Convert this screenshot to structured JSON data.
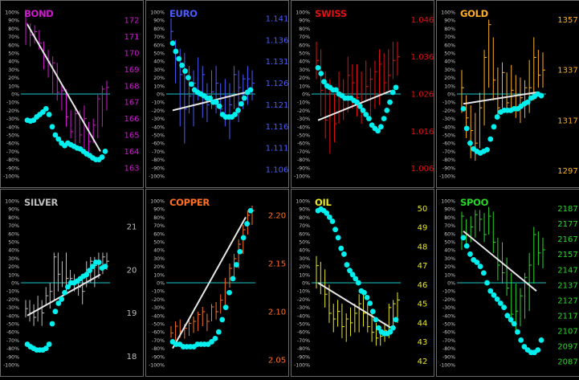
{
  "colors": {
    "background": "#000000",
    "panel_border": "#6a6a6a",
    "zero_line": "#19c9c9",
    "dots": "#00f0f0",
    "trend_line": "#e6e6e6",
    "pct_labels": "#c8c8c8"
  },
  "pct_axis_labels": [
    "100%",
    "90%",
    "80%",
    "70%",
    "60%",
    "50%",
    "40%",
    "30%",
    "20%",
    "10%",
    "0%",
    "-10%",
    "-20%",
    "-30%",
    "-40%",
    "-50%",
    "-60%",
    "-70%",
    "-80%",
    "-90%",
    "-100%"
  ],
  "chart_data": [
    {
      "type": "line",
      "title": "BOND",
      "color": "#d018d0",
      "price_ticks": [
        "172",
        "171",
        "170",
        "169",
        "168",
        "167",
        "166",
        "165",
        "164",
        "163"
      ],
      "ylim": [
        162.5,
        172.5
      ],
      "bars": [
        [
          170.5,
          172.2,
          171.8
        ],
        [
          170.4,
          171.8,
          171.1
        ],
        [
          170.6,
          171.7,
          171.3
        ],
        [
          170.2,
          171.4,
          170.6
        ],
        [
          169.0,
          170.7,
          169.9
        ],
        [
          168.5,
          170.2,
          169.5
        ],
        [
          167.5,
          169.8,
          169.4
        ],
        [
          167.1,
          169.4,
          167.6
        ],
        [
          166.5,
          168.0,
          167.7
        ],
        [
          165.5,
          167.8,
          166.1
        ],
        [
          164.8,
          166.5,
          165.2
        ],
        [
          164.2,
          166.8,
          166.3
        ],
        [
          164.5,
          166.5,
          165.0
        ],
        [
          164.2,
          166.8,
          166.0
        ],
        [
          163.8,
          165.8,
          164.6
        ],
        [
          164.5,
          166.0,
          165.6
        ],
        [
          164.8,
          167.5,
          167.2
        ],
        [
          165.5,
          168.0,
          167.8
        ],
        [
          166.5,
          168.3,
          167.9
        ]
      ],
      "oscillator": [
        -32,
        -33,
        -32,
        -28,
        -25,
        -22,
        -18,
        -25,
        -40,
        -50,
        -55,
        -60,
        -63,
        -60,
        -62,
        -64,
        -66,
        -67,
        -70,
        -73,
        -75,
        -78,
        -80,
        -80,
        -77,
        -70
      ],
      "trend": [
        85,
        -70
      ]
    },
    {
      "type": "line",
      "title": "EURO",
      "color": "#4a5cff",
      "price_ticks": [
        "1.141",
        "1.136",
        "1.131",
        "1.126",
        "1.121",
        "1.116",
        "1.111",
        "1.106"
      ],
      "ylim": [
        1.1045,
        1.1425
      ],
      "bars": [
        [
          1.136,
          1.141,
          1.138
        ],
        [
          1.126,
          1.136,
          1.133
        ],
        [
          1.116,
          1.134,
          1.128
        ],
        [
          1.112,
          1.133,
          1.12
        ],
        [
          1.119,
          1.13,
          1.123
        ],
        [
          1.116,
          1.129,
          1.126
        ],
        [
          1.122,
          1.132,
          1.124
        ],
        [
          1.118,
          1.13,
          1.128
        ],
        [
          1.117,
          1.126,
          1.121
        ],
        [
          1.12,
          1.129,
          1.124
        ],
        [
          1.119,
          1.13,
          1.126
        ],
        [
          1.119,
          1.126,
          1.12
        ],
        [
          1.116,
          1.127,
          1.123
        ],
        [
          1.113,
          1.126,
          1.121
        ],
        [
          1.12,
          1.13,
          1.128
        ],
        [
          1.117,
          1.129,
          1.125
        ],
        [
          1.12,
          1.128,
          1.127
        ],
        [
          1.121,
          1.13,
          1.127
        ],
        [
          1.122,
          1.129,
          1.126
        ]
      ],
      "oscillator": [
        62,
        52,
        43,
        35,
        28,
        20,
        12,
        5,
        2,
        0,
        -2,
        -5,
        -5,
        -10,
        -10,
        -15,
        -25,
        -28,
        -28,
        -28,
        -25,
        -20,
        -12,
        -5,
        2,
        5
      ],
      "trend": [
        -20,
        2
      ]
    },
    {
      "type": "line",
      "title": "SWISS",
      "color": "#e41010",
      "price_ticks": [
        "1.046",
        "1.036",
        "1.026",
        "1.016",
        "1.006"
      ],
      "ylim": [
        1.004,
        1.048
      ],
      "bars": [
        [
          1.03,
          1.04,
          1.035
        ],
        [
          1.02,
          1.038,
          1.027
        ],
        [
          1.014,
          1.032,
          1.019
        ],
        [
          1.01,
          1.03,
          1.027
        ],
        [
          1.013,
          1.026,
          1.018
        ],
        [
          1.018,
          1.032,
          1.026
        ],
        [
          1.019,
          1.03,
          1.022
        ],
        [
          1.021,
          1.036,
          1.031
        ],
        [
          1.022,
          1.034,
          1.029
        ],
        [
          1.02,
          1.034,
          1.025
        ],
        [
          1.018,
          1.032,
          1.021
        ],
        [
          1.024,
          1.035,
          1.028
        ],
        [
          1.02,
          1.033,
          1.03
        ],
        [
          1.022,
          1.035,
          1.032
        ],
        [
          1.023,
          1.038,
          1.034
        ],
        [
          1.026,
          1.037,
          1.029
        ],
        [
          1.027,
          1.038,
          1.031
        ],
        [
          1.03,
          1.04,
          1.035
        ],
        [
          1.031,
          1.04,
          1.036
        ]
      ],
      "oscillator": [
        32,
        25,
        15,
        10,
        8,
        5,
        5,
        0,
        -2,
        -5,
        -5,
        -5,
        -8,
        -10,
        -15,
        -20,
        -25,
        -30,
        -38,
        -42,
        -45,
        -40,
        -30,
        -20,
        -10,
        2,
        8
      ],
      "trend": [
        -32,
        4
      ]
    },
    {
      "type": "line",
      "title": "GOLD",
      "color": "#ffb020",
      "price_ticks": [
        "1357",
        "1337",
        "1317",
        "1297"
      ],
      "ylim": [
        1295,
        1360
      ],
      "bars": [
        [
          1320,
          1337,
          1330
        ],
        [
          1310,
          1327,
          1318
        ],
        [
          1302,
          1323,
          1313
        ],
        [
          1301,
          1320,
          1308
        ],
        [
          1306,
          1328,
          1322
        ],
        [
          1315,
          1345,
          1342
        ],
        [
          1330,
          1357,
          1355
        ],
        [
          1325,
          1350,
          1333
        ],
        [
          1318,
          1338,
          1322
        ],
        [
          1322,
          1340,
          1336
        ],
        [
          1321,
          1336,
          1324
        ],
        [
          1320,
          1339,
          1329
        ],
        [
          1318,
          1335,
          1322
        ],
        [
          1316,
          1334,
          1326
        ],
        [
          1318,
          1333,
          1330
        ],
        [
          1320,
          1341,
          1330
        ],
        [
          1325,
          1350,
          1342
        ],
        [
          1330,
          1345,
          1335
        ],
        [
          1330,
          1344,
          1337
        ]
      ],
      "oscillator": [
        -18,
        -42,
        -60,
        -67,
        -70,
        -72,
        -70,
        -68,
        -55,
        -40,
        -28,
        -22,
        -20,
        -20,
        -20,
        -18,
        -18,
        -15,
        -12,
        -10,
        -5,
        -3,
        0,
        -2
      ],
      "trend": [
        -12,
        2
      ]
    },
    {
      "type": "line",
      "title": "SILVER",
      "color": "#bebebe",
      "price_ticks": [
        "21",
        "20",
        "19",
        "18"
      ],
      "ylim": [
        17.8,
        21.6
      ],
      "bars": [
        [
          18.9,
          19.3,
          19.1
        ],
        [
          18.8,
          19.3,
          19.0
        ],
        [
          18.7,
          19.2,
          18.9
        ],
        [
          18.8,
          19.4,
          19.1
        ],
        [
          18.7,
          19.3,
          19.0
        ],
        [
          19.2,
          19.6,
          19.4
        ],
        [
          19.1,
          19.7,
          19.5
        ],
        [
          19.3,
          20.4,
          20.3
        ],
        [
          19.5,
          20.4,
          19.9
        ],
        [
          19.6,
          20.2,
          19.7
        ],
        [
          19.5,
          20.4,
          19.8
        ],
        [
          19.6,
          20.0,
          19.8
        ],
        [
          19.5,
          19.9,
          19.7
        ],
        [
          19.4,
          19.8,
          19.6
        ],
        [
          19.2,
          19.8,
          19.5
        ],
        [
          19.6,
          20.2,
          20.0
        ],
        [
          19.7,
          20.3,
          20.2
        ],
        [
          19.6,
          20.3,
          20.1
        ],
        [
          19.8,
          20.4,
          20.2
        ],
        [
          19.9,
          20.4,
          20.3
        ],
        [
          20.0,
          20.4,
          20.2
        ]
      ],
      "oscillator": [
        -75,
        -78,
        -80,
        -82,
        -82,
        -82,
        -80,
        -75,
        -50,
        -35,
        -25,
        -20,
        -12,
        -5,
        0,
        0,
        2,
        5,
        8,
        10,
        15,
        20,
        25,
        25,
        18,
        20
      ],
      "trend": [
        -40,
        10
      ]
    },
    {
      "type": "line",
      "title": "COPPER",
      "color": "#ff7020",
      "price_ticks": [
        "2.20",
        "2.15",
        "2.10",
        "2.05"
      ],
      "ylim": [
        2.045,
        2.215
      ],
      "bars": [
        [
          2.073,
          2.085,
          2.078
        ],
        [
          2.07,
          2.09,
          2.085
        ],
        [
          2.073,
          2.092,
          2.08
        ],
        [
          2.072,
          2.087,
          2.083
        ],
        [
          2.075,
          2.093,
          2.088
        ],
        [
          2.078,
          2.095,
          2.09
        ],
        [
          2.08,
          2.1,
          2.097
        ],
        [
          2.085,
          2.105,
          2.1
        ],
        [
          2.08,
          2.098,
          2.09
        ],
        [
          2.09,
          2.108,
          2.105
        ],
        [
          2.092,
          2.11,
          2.1
        ],
        [
          2.098,
          2.118,
          2.112
        ],
        [
          2.105,
          2.135,
          2.13
        ],
        [
          2.125,
          2.15,
          2.145
        ],
        [
          2.135,
          2.16,
          2.155
        ],
        [
          2.145,
          2.175,
          2.17
        ],
        [
          2.16,
          2.19,
          2.185
        ],
        [
          2.18,
          2.205,
          2.2
        ],
        [
          2.19,
          2.21,
          2.205
        ]
      ],
      "oscillator": [
        -72,
        -75,
        -75,
        -78,
        -78,
        -78,
        -78,
        -75,
        -75,
        -75,
        -75,
        -72,
        -68,
        -60,
        -45,
        -30,
        -12,
        5,
        22,
        38,
        55,
        72,
        88
      ],
      "trend": [
        -80,
        80
      ]
    },
    {
      "type": "line",
      "title": "OIL",
      "color": "#e8e820",
      "price_ticks": [
        "50",
        "49",
        "48",
        "47",
        "46",
        "45",
        "44",
        "43",
        "42"
      ],
      "ylim": [
        41.8,
        50.4
      ],
      "bars": [
        [
          45.8,
          47.5,
          47.0
        ],
        [
          45.5,
          47.2,
          46.0
        ],
        [
          44.8,
          46.8,
          45.5
        ],
        [
          44.0,
          46.0,
          44.5
        ],
        [
          43.5,
          45.0,
          44.2
        ],
        [
          43.8,
          45.2,
          44.6
        ],
        [
          43.2,
          45.0,
          43.8
        ],
        [
          43.0,
          44.5,
          44.2
        ],
        [
          43.3,
          44.8,
          44.0
        ],
        [
          43.5,
          45.0,
          44.5
        ],
        [
          43.5,
          45.5,
          45.0
        ],
        [
          43.8,
          45.5,
          44.5
        ],
        [
          43.5,
          45.0,
          43.8
        ],
        [
          43.0,
          44.5,
          43.5
        ],
        [
          42.8,
          44.0,
          43.2
        ],
        [
          42.8,
          43.6,
          43.3
        ],
        [
          43.0,
          44.0,
          43.6
        ],
        [
          43.2,
          45.0,
          44.8
        ],
        [
          43.8,
          45.2,
          45.0
        ],
        [
          44.0,
          45.6,
          45.2
        ]
      ],
      "oscillator": [
        88,
        90,
        88,
        85,
        80,
        75,
        65,
        55,
        42,
        35,
        22,
        15,
        10,
        5,
        0,
        -10,
        -12,
        -18,
        -25,
        -35,
        -45,
        -55,
        -60,
        -62,
        -62,
        -60,
        -55,
        -45
      ],
      "trend": [
        0,
        -55
      ]
    },
    {
      "type": "line",
      "title": "SPOO",
      "color": "#28d828",
      "price_ticks": [
        "2187",
        "2177",
        "2167",
        "2157",
        "2147",
        "2137",
        "2127",
        "2117",
        "2107",
        "2097",
        "2087"
      ],
      "ylim": [
        2085,
        2192
      ],
      "bars": [
        [
          2160,
          2185,
          2182
        ],
        [
          2162,
          2180,
          2170
        ],
        [
          2165,
          2182,
          2175
        ],
        [
          2168,
          2186,
          2183
        ],
        [
          2172,
          2186,
          2180
        ],
        [
          2165,
          2184,
          2170
        ],
        [
          2170,
          2188,
          2182
        ],
        [
          2158,
          2185,
          2165
        ],
        [
          2140,
          2168,
          2150
        ],
        [
          2138,
          2165,
          2145
        ],
        [
          2130,
          2155,
          2135
        ],
        [
          2112,
          2145,
          2118
        ],
        [
          2105,
          2138,
          2120
        ],
        [
          2110,
          2135,
          2130
        ],
        [
          2115,
          2145,
          2142
        ],
        [
          2120,
          2158,
          2150
        ],
        [
          2138,
          2175,
          2170
        ],
        [
          2150,
          2172,
          2158
        ],
        [
          2148,
          2168,
          2160
        ]
      ],
      "oscillator": [
        55,
        45,
        35,
        28,
        25,
        20,
        12,
        0,
        -10,
        -15,
        -20,
        -25,
        -30,
        -40,
        -45,
        -50,
        -60,
        -70,
        -78,
        -82,
        -85,
        -85,
        -82,
        -70
      ],
      "trend": [
        63,
        -10
      ]
    }
  ]
}
